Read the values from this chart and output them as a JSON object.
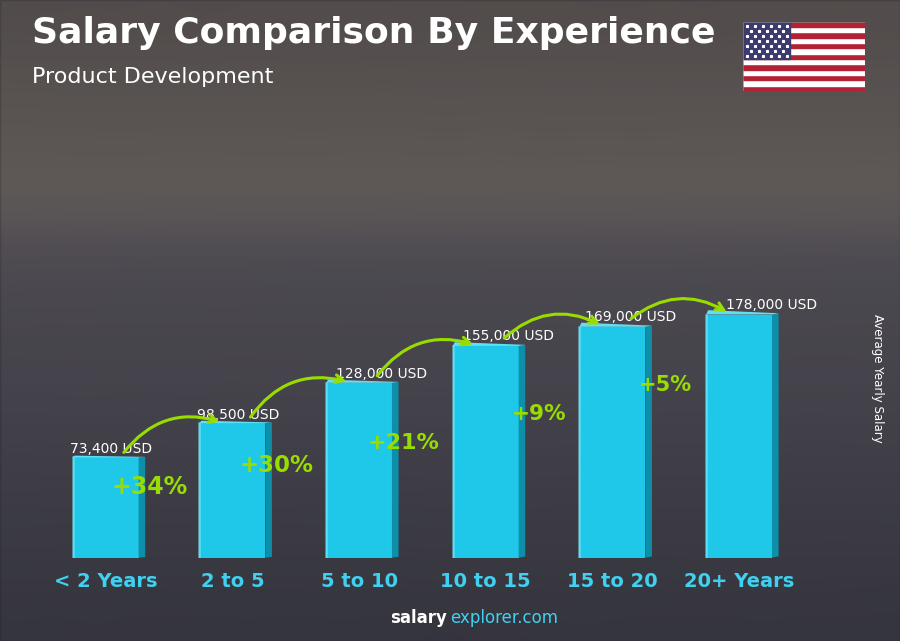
{
  "categories": [
    "< 2 Years",
    "2 to 5",
    "5 to 10",
    "10 to 15",
    "15 to 20",
    "20+ Years"
  ],
  "values": [
    73400,
    98500,
    128000,
    155000,
    169000,
    178000
  ],
  "salaries": [
    "73,400 USD",
    "98,500 USD",
    "128,000 USD",
    "155,000 USD",
    "169,000 USD",
    "178,000 USD"
  ],
  "pct_changes": [
    "+34%",
    "+30%",
    "+21%",
    "+9%",
    "+5%"
  ],
  "title": "Salary Comparison By Experience",
  "subtitle": "Product Development",
  "ylabel": "Average Yearly Salary",
  "watermark_bold": "salary",
  "watermark_light": "explorer.com",
  "bar_face_color": "#1FC8E8",
  "bar_right_color": "#0D8FAA",
  "bar_top_color": "#60E0F5",
  "bar_left_highlight": "#80EEFF",
  "green_color": "#99DD00",
  "white_color": "#FFFFFF",
  "cyan_label_color": "#40D0F0",
  "title_fontsize": 26,
  "subtitle_fontsize": 16,
  "tick_fontsize": 14,
  "salary_fontsize": 10,
  "pct_fontsize": 17
}
